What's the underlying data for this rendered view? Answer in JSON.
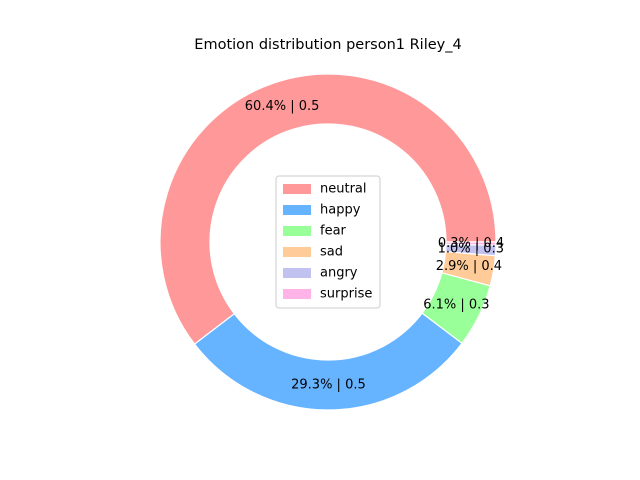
{
  "chart_data": {
    "type": "pie",
    "donut": true,
    "title": "Emotion distribution person1 Riley_4",
    "categories": [
      "neutral",
      "happy",
      "fear",
      "sad",
      "angry",
      "surprise"
    ],
    "values": [
      60.4,
      29.3,
      6.1,
      2.9,
      1.0,
      0.3
    ],
    "labels": [
      "60.4% | 0.5",
      "29.3% | 0.5",
      "6.1% | 0.3",
      "2.9% | 0.4",
      "1.0% | 0.3",
      "0.3% | 0.4"
    ],
    "colors": [
      "#ff9999",
      "#66b3ff",
      "#99ff99",
      "#ffcc99",
      "#c2c2f0",
      "#ffb3e6"
    ],
    "start_angle_deg": 0,
    "direction": "counterclockwise",
    "legend": {
      "position": "center",
      "entries": [
        "neutral",
        "happy",
        "fear",
        "sad",
        "angry",
        "surprise"
      ]
    }
  }
}
